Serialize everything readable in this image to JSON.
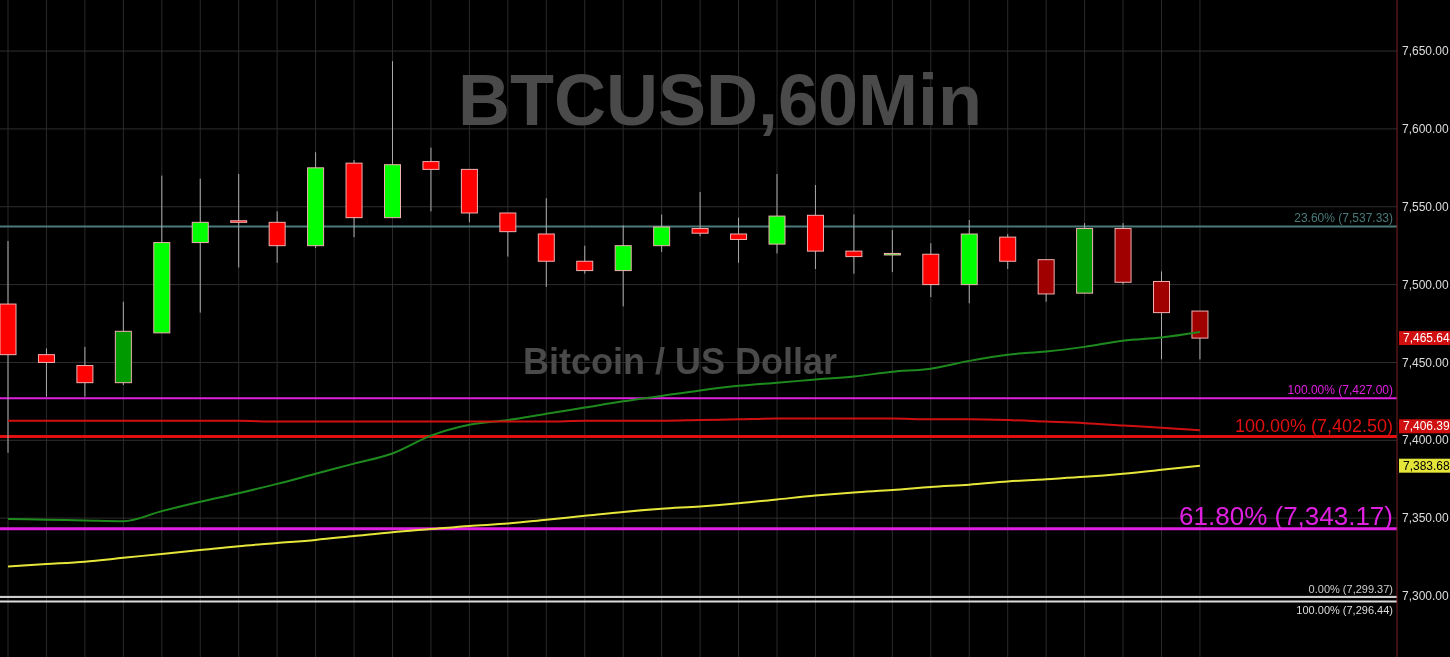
{
  "chart_data": {
    "type": "candlestick",
    "title": "BTCUSD,60Min",
    "subtitle": "Bitcoin / US Dollar",
    "categories": [
      null,
      null,
      null,
      null,
      null,
      null,
      null,
      null,
      null,
      null,
      null,
      null,
      null,
      null,
      null,
      null,
      null,
      null,
      null,
      null,
      null,
      null,
      null,
      null,
      null,
      null,
      null,
      null,
      null,
      null,
      null,
      null
    ],
    "ohlc": [
      [
        7487.5,
        7528,
        7392,
        7455
      ],
      [
        7455,
        7459,
        7428,
        7450
      ],
      [
        7448,
        7460,
        7428,
        7437
      ],
      [
        7437,
        7489,
        7435.5,
        7470
      ],
      [
        7469,
        7570,
        7469,
        7527
      ],
      [
        7527,
        7568,
        7482,
        7540
      ],
      [
        7541,
        7571,
        7511,
        7540
      ],
      [
        7540,
        7547,
        7514,
        7525
      ],
      [
        7525,
        7585,
        7523.5,
        7575
      ],
      [
        7578,
        7580,
        7530.5,
        7543
      ],
      [
        7543,
        7643.5,
        7543,
        7577
      ],
      [
        7579,
        7588,
        7547,
        7574
      ],
      [
        7574,
        7574,
        7540,
        7546
      ],
      [
        7546,
        7546,
        7518,
        7534
      ],
      [
        7532.5,
        7555.5,
        7498.5,
        7515
      ],
      [
        7515,
        7525,
        7507,
        7509
      ],
      [
        7509,
        7538,
        7486,
        7525
      ],
      [
        7525,
        7545,
        7521,
        7537
      ],
      [
        7536,
        7559.5,
        7531,
        7533
      ],
      [
        7532.5,
        7543,
        7514,
        7529
      ],
      [
        7526,
        7571,
        7520,
        7544
      ],
      [
        7544.5,
        7564,
        7510,
        7521.5
      ],
      [
        7521.5,
        7545,
        7507,
        7518
      ],
      [
        7519.5,
        7535,
        7508,
        7520
      ],
      [
        7519.5,
        7526.5,
        7492,
        7500
      ],
      [
        7500,
        7541.5,
        7488,
        7532.5
      ],
      [
        7530.5,
        7532.5,
        7510,
        7515
      ],
      [
        7516,
        7516,
        7489,
        7494
      ],
      [
        7494.5,
        7539.5,
        7494.5,
        7536
      ],
      [
        7536,
        7539.5,
        7500,
        7501.5
      ],
      [
        7502,
        7508.5,
        7452,
        7482
      ],
      [
        7483,
        7483,
        7452,
        7465.64
      ]
    ],
    "colors": [
      "#ff0000",
      "#ff0000",
      "#ff0000",
      "#009900",
      "#00ff00",
      "#00ff00",
      "#ff0000",
      "#ff0000",
      "#00ff00",
      "#ff0000",
      "#00ff00",
      "#ff0000",
      "#ff0000",
      "#ff0000",
      "#ff0000",
      "#ff0000",
      "#00ff00",
      "#00ff00",
      "#ff0000",
      "#ff0000",
      "#00ff00",
      "#ff0000",
      "#ff0000",
      "#00ff00",
      "#ff0000",
      "#00ff00",
      "#ff0000",
      "#a00000",
      "#009900",
      "#a00000",
      "#a00000",
      "#a00000"
    ],
    "series": [
      {
        "type": "line",
        "color": "#1e8a1e",
        "values": [
          7349.5,
          7349,
          7348.5,
          7348,
          7354.5,
          7360.5,
          7366,
          7372,
          7378.5,
          7385,
          7391.5,
          7403,
          7410,
          7413,
          7417,
          7421,
          7425,
          7428.5,
          7432,
          7435,
          7437,
          7439,
          7441,
          7444,
          7446,
          7451,
          7455,
          7457,
          7460,
          7464,
          7466,
          7469.5
        ]
      },
      {
        "type": "line",
        "color": "#d01010",
        "values": [
          7412.5,
          7412.5,
          7412.5,
          7412.5,
          7412.5,
          7412.5,
          7412.5,
          7412,
          7412,
          7412,
          7412,
          7412,
          7412,
          7412,
          7412,
          7412.5,
          7412.5,
          7412.5,
          7413,
          7413.5,
          7414,
          7414,
          7414,
          7414,
          7413.5,
          7413.5,
          7413,
          7412,
          7411,
          7409.5,
          7408,
          7406.39
        ]
      },
      {
        "type": "line",
        "color": "#e6e63a",
        "values": [
          7319,
          7320.5,
          7322,
          7324.5,
          7327,
          7329.5,
          7332,
          7334,
          7336,
          7338.5,
          7341,
          7343,
          7345,
          7346.5,
          7349,
          7351.5,
          7354,
          7356,
          7357.5,
          7359.5,
          7362,
          7364.5,
          7366.5,
          7368,
          7370,
          7371.5,
          7373.5,
          7375,
          7376.5,
          7378.5,
          7381,
          7383.68
        ]
      }
    ],
    "ylim": [
      7260.8,
      7682.8
    ],
    "yticks": [
      {
        "value": 7300,
        "label": "7,300.00"
      },
      {
        "value": 7350,
        "label": "7,350.00"
      },
      {
        "value": 7400,
        "label": "7,400.00"
      },
      {
        "value": 7450,
        "label": "7,450.00"
      },
      {
        "value": 7500,
        "label": "7,500.00"
      },
      {
        "value": 7550,
        "label": "7,550.00"
      },
      {
        "value": 7600,
        "label": "7,600.00"
      },
      {
        "value": 7650,
        "label": "7,650.00"
      }
    ],
    "grid": true,
    "ref_lines": [
      {
        "axis": "y",
        "value": 7537.33,
        "label": "23.60% (7,537.33)",
        "color": "#4a7a7a"
      },
      {
        "axis": "y",
        "value": 7427,
        "label": "100.00% (7,427.00)",
        "color": "#e020e0"
      },
      {
        "axis": "y",
        "value": 7402.5,
        "label": "100.00% (7,402.50)",
        "color": "#e01010"
      },
      {
        "axis": "y",
        "value": 7343.17,
        "label": "61.80% (7,343.17)",
        "color": "#e020e0"
      },
      {
        "axis": "y",
        "value": 7299.37,
        "label": "0.00% (7,299.37)",
        "color": "#cccccc"
      },
      {
        "axis": "y",
        "value": 7296.44,
        "label": "100.00% (7,296.44)",
        "color": "#dddddd"
      }
    ],
    "annotations": [
      "7,465.64",
      "7,406.39",
      "7,383.68"
    ]
  }
}
